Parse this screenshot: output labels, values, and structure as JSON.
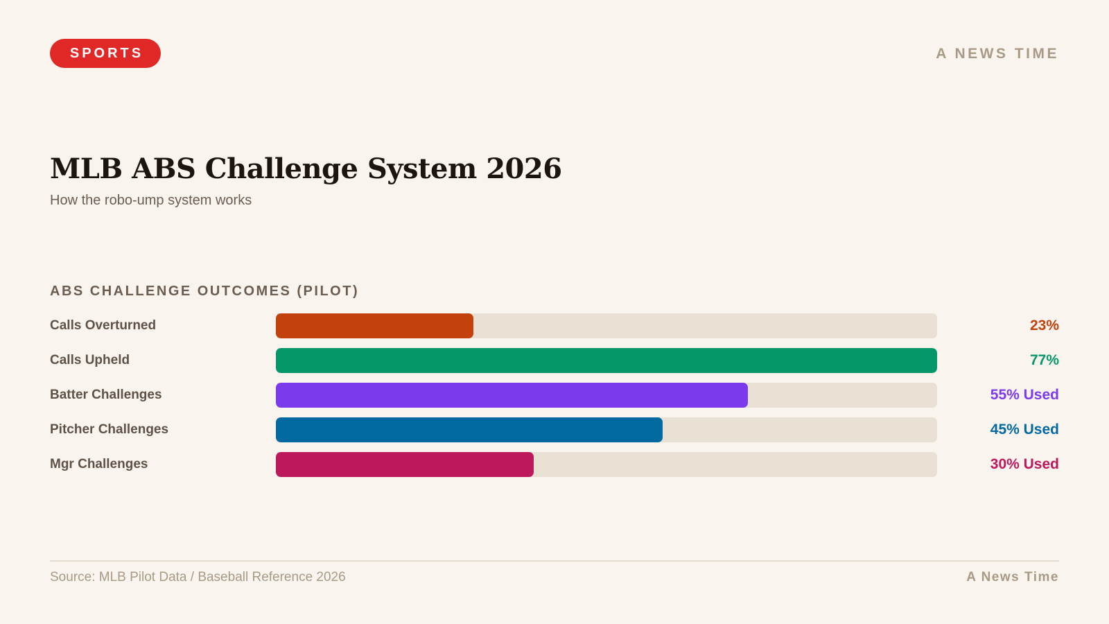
{
  "header": {
    "category_badge": "SPORTS",
    "brand": "A NEWS TIME"
  },
  "headline": {
    "title": "MLB ABS Challenge System 2026",
    "subtitle": "How the robo-ump system works"
  },
  "chart_data": {
    "type": "bar",
    "orientation": "horizontal",
    "title": "ABS CHALLENGE OUTCOMES (PILOT)",
    "xlabel": "",
    "ylabel": "",
    "xlim": [
      0,
      77
    ],
    "grid": false,
    "categories": [
      "Calls Overturned",
      "Calls Upheld",
      "Batter Challenges",
      "Pitcher Challenges",
      "Mgr Challenges"
    ],
    "values": [
      23,
      77,
      55,
      45,
      30
    ],
    "units": "%",
    "data_labels": [
      "23%",
      "77%",
      "55% Used",
      "45% Used",
      "30% Used"
    ],
    "colors": [
      "#c2410c",
      "#059669",
      "#7c3aed",
      "#0369a1",
      "#be185d"
    ]
  },
  "footer": {
    "source": "Source: MLB Pilot Data / Baseball Reference 2026",
    "brand": "A News Time"
  },
  "theme": {
    "background": "#f9f4ee",
    "badge_color": "#e02926",
    "track_color": "#e8e0d2"
  }
}
